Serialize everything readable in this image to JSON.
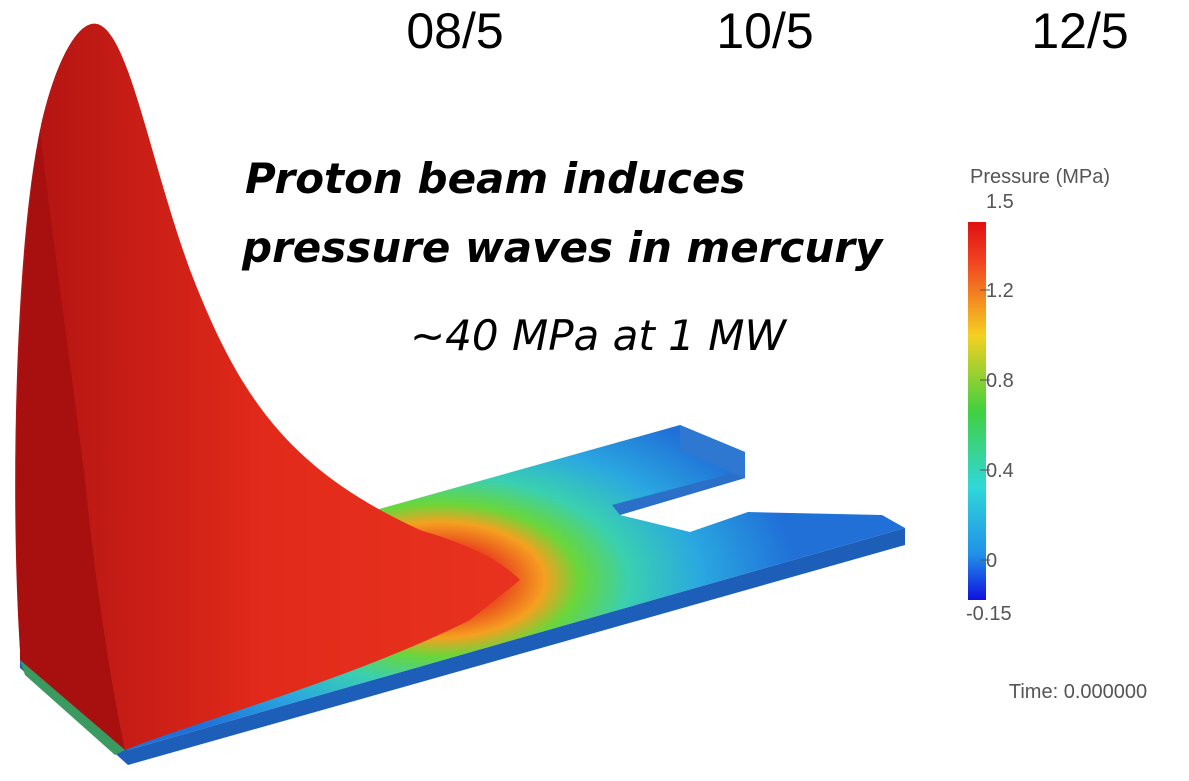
{
  "header": {
    "dates": [
      "08/5",
      "10/5",
      "12/5"
    ]
  },
  "annotation": {
    "lines": [
      "Proton beam induces",
      "pressure waves in mercury"
    ],
    "note": "~40 MPa at 1 MW"
  },
  "colorbar": {
    "title": "Pressure (MPa)",
    "ticks": [
      "1.5",
      "1.2",
      "0.8",
      "0.4",
      "0",
      "-0.15"
    ]
  },
  "time_label": "Time: 0.000000"
}
